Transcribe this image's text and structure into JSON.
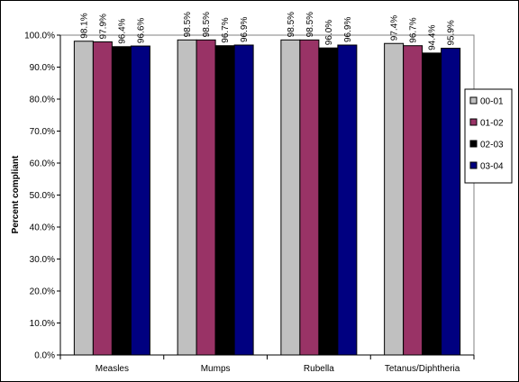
{
  "chart_data": {
    "type": "bar",
    "title": "",
    "xlabel": "",
    "ylabel": "Percent compliant",
    "ylim": [
      0,
      100
    ],
    "y_ticks": [
      "0.0%",
      "10.0%",
      "20.0%",
      "30.0%",
      "40.0%",
      "50.0%",
      "60.0%",
      "70.0%",
      "80.0%",
      "90.0%",
      "100.0%"
    ],
    "categories": [
      "Measles",
      "Mumps",
      "Rubella",
      "Tetanus/Diphtheria"
    ],
    "series": [
      {
        "name": "00-01",
        "color": "#c0c0c0",
        "values": [
          98.1,
          98.5,
          98.5,
          97.4
        ],
        "labels": [
          "98.1%",
          "98.5%",
          "98.5%",
          "97.4%"
        ]
      },
      {
        "name": "01-02",
        "color": "#993366",
        "values": [
          97.9,
          98.5,
          98.5,
          96.7
        ],
        "labels": [
          "97.9%",
          "98.5%",
          "98.5%",
          "96.7%"
        ]
      },
      {
        "name": "02-03",
        "color": "#000000",
        "values": [
          96.4,
          96.7,
          96.0,
          94.4
        ],
        "labels": [
          "96.4%",
          "96.7%",
          "96.0%",
          "94.4%"
        ]
      },
      {
        "name": "03-04",
        "color": "#000080",
        "values": [
          96.6,
          96.9,
          96.9,
          95.9
        ],
        "labels": [
          "96.6%",
          "96.9%",
          "96.9%",
          "95.9%"
        ]
      }
    ],
    "grid": false,
    "legend_position": "right"
  }
}
